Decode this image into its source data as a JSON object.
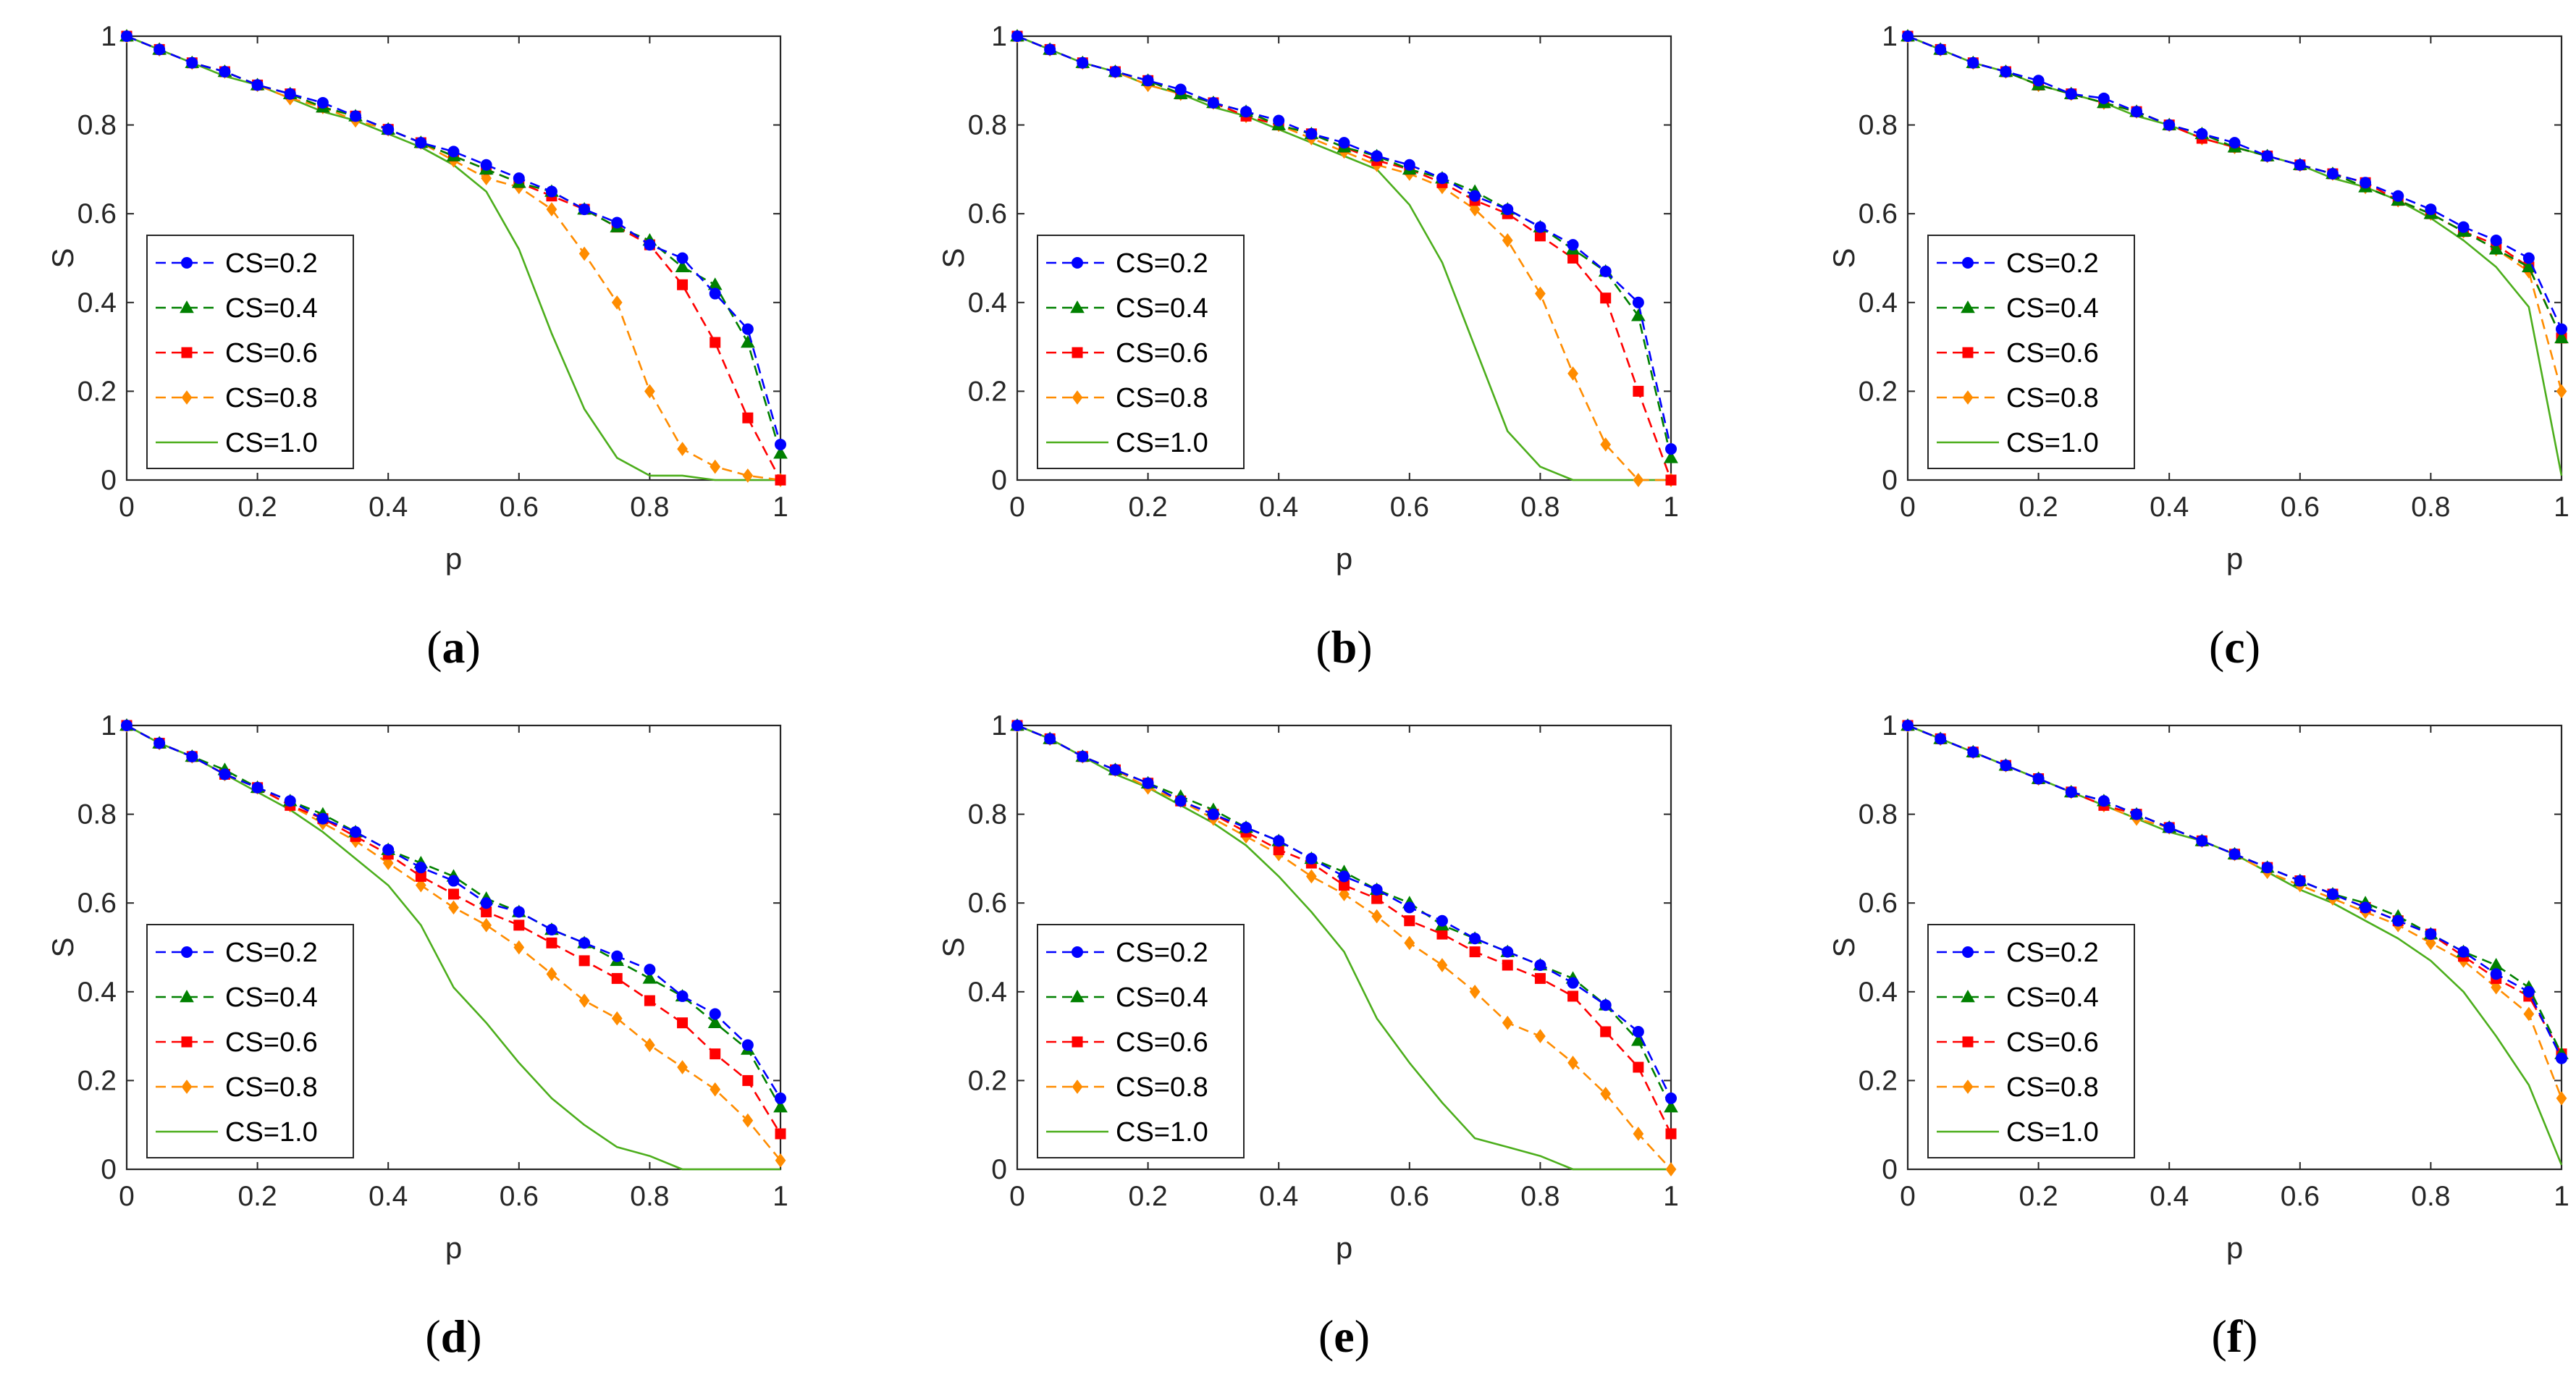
{
  "colors": {
    "cs02": "#0000ff",
    "cs04": "#008000",
    "cs06": "#ff0000",
    "cs08": "#ff8c00",
    "cs10": "#4cae1c",
    "axis": "#262626"
  },
  "legend_labels": [
    "CS=0.2",
    "CS=0.4",
    "CS=0.6",
    "CS=0.8",
    "CS=1.0"
  ],
  "chart_data": [
    {
      "id": "a",
      "type": "line",
      "caption_letter": "a",
      "caption_open": "(",
      "caption_close": ")",
      "xlabel": "p",
      "ylabel": "S",
      "xlim": [
        0,
        1
      ],
      "ylim": [
        0,
        1
      ],
      "xticks": [
        "0",
        "0.2",
        "0.4",
        "0.6",
        "0.8",
        "1"
      ],
      "yticks": [
        "0",
        "0.2",
        "0.4",
        "0.6",
        "0.8",
        "1"
      ],
      "legend": "bottom-left",
      "x": [
        0,
        0.05,
        0.1,
        0.15,
        0.2,
        0.25,
        0.3,
        0.35,
        0.4,
        0.45,
        0.5,
        0.55,
        0.6,
        0.65,
        0.7,
        0.75,
        0.8,
        0.85,
        0.9,
        0.95,
        1.0
      ],
      "series": [
        {
          "name": "CS=0.2",
          "values": [
            1.0,
            0.97,
            0.94,
            0.92,
            0.89,
            0.87,
            0.85,
            0.82,
            0.79,
            0.76,
            0.74,
            0.71,
            0.68,
            0.65,
            0.61,
            0.58,
            0.53,
            0.5,
            0.42,
            0.34,
            0.08
          ]
        },
        {
          "name": "CS=0.4",
          "values": [
            1.0,
            0.97,
            0.94,
            0.92,
            0.89,
            0.87,
            0.84,
            0.82,
            0.79,
            0.76,
            0.73,
            0.7,
            0.67,
            0.65,
            0.61,
            0.57,
            0.54,
            0.48,
            0.44,
            0.31,
            0.06
          ]
        },
        {
          "name": "CS=0.6",
          "values": [
            1.0,
            0.97,
            0.94,
            0.92,
            0.89,
            0.87,
            0.84,
            0.82,
            0.79,
            0.76,
            0.73,
            0.7,
            0.67,
            0.64,
            0.61,
            0.57,
            0.53,
            0.44,
            0.31,
            0.14,
            0.0
          ]
        },
        {
          "name": "CS=0.8",
          "values": [
            1.0,
            0.97,
            0.94,
            0.92,
            0.89,
            0.86,
            0.84,
            0.81,
            0.79,
            0.76,
            0.72,
            0.68,
            0.66,
            0.61,
            0.51,
            0.4,
            0.2,
            0.07,
            0.03,
            0.01,
            0.0
          ]
        },
        {
          "name": "CS=1.0",
          "values": [
            1.0,
            0.97,
            0.94,
            0.91,
            0.89,
            0.86,
            0.83,
            0.81,
            0.78,
            0.75,
            0.71,
            0.65,
            0.52,
            0.33,
            0.16,
            0.05,
            0.01,
            0.01,
            0.0,
            0.0,
            0.0
          ]
        }
      ]
    },
    {
      "id": "b",
      "type": "line",
      "caption_letter": "b",
      "caption_open": "(",
      "caption_close": ")",
      "xlabel": "p",
      "ylabel": "S",
      "xlim": [
        0,
        1
      ],
      "ylim": [
        0,
        1
      ],
      "xticks": [
        "0",
        "0.2",
        "0.4",
        "0.6",
        "0.8",
        "1"
      ],
      "yticks": [
        "0",
        "0.2",
        "0.4",
        "0.6",
        "0.8",
        "1"
      ],
      "legend": "bottom-left",
      "x": [
        0,
        0.05,
        0.1,
        0.15,
        0.2,
        0.25,
        0.3,
        0.35,
        0.4,
        0.45,
        0.5,
        0.55,
        0.6,
        0.65,
        0.7,
        0.75,
        0.8,
        0.85,
        0.9,
        0.95,
        1.0
      ],
      "series": [
        {
          "name": "CS=0.2",
          "values": [
            1.0,
            0.97,
            0.94,
            0.92,
            0.9,
            0.88,
            0.85,
            0.83,
            0.81,
            0.78,
            0.76,
            0.73,
            0.71,
            0.68,
            0.64,
            0.61,
            0.57,
            0.53,
            0.47,
            0.4,
            0.07
          ]
        },
        {
          "name": "CS=0.4",
          "values": [
            1.0,
            0.97,
            0.94,
            0.92,
            0.9,
            0.87,
            0.85,
            0.83,
            0.8,
            0.78,
            0.75,
            0.73,
            0.7,
            0.68,
            0.65,
            0.61,
            0.57,
            0.52,
            0.47,
            0.37,
            0.05
          ]
        },
        {
          "name": "CS=0.6",
          "values": [
            1.0,
            0.97,
            0.94,
            0.92,
            0.9,
            0.87,
            0.85,
            0.82,
            0.8,
            0.78,
            0.75,
            0.72,
            0.7,
            0.67,
            0.63,
            0.6,
            0.55,
            0.5,
            0.41,
            0.2,
            0.0
          ]
        },
        {
          "name": "CS=0.8",
          "values": [
            1.0,
            0.97,
            0.94,
            0.92,
            0.89,
            0.87,
            0.85,
            0.82,
            0.8,
            0.77,
            0.74,
            0.71,
            0.69,
            0.66,
            0.61,
            0.54,
            0.42,
            0.24,
            0.08,
            0.0,
            0.0
          ]
        },
        {
          "name": "CS=1.0",
          "values": [
            1.0,
            0.97,
            0.94,
            0.92,
            0.89,
            0.87,
            0.84,
            0.82,
            0.79,
            0.76,
            0.73,
            0.7,
            0.62,
            0.49,
            0.3,
            0.11,
            0.03,
            0.0,
            0.0,
            0.0,
            0.0
          ]
        }
      ]
    },
    {
      "id": "c",
      "type": "line",
      "caption_letter": "c",
      "caption_open": "(",
      "caption_close": ")",
      "xlabel": "p",
      "ylabel": "S",
      "xlim": [
        0,
        1
      ],
      "ylim": [
        0,
        1
      ],
      "xticks": [
        "0",
        "0.2",
        "0.4",
        "0.6",
        "0.8",
        "1"
      ],
      "yticks": [
        "0",
        "0.2",
        "0.4",
        "0.6",
        "0.8",
        "1"
      ],
      "legend": "bottom-left",
      "x": [
        0,
        0.05,
        0.1,
        0.15,
        0.2,
        0.25,
        0.3,
        0.35,
        0.4,
        0.45,
        0.5,
        0.55,
        0.6,
        0.65,
        0.7,
        0.75,
        0.8,
        0.85,
        0.9,
        0.95,
        1.0
      ],
      "series": [
        {
          "name": "CS=0.2",
          "values": [
            1.0,
            0.97,
            0.94,
            0.92,
            0.9,
            0.87,
            0.86,
            0.83,
            0.8,
            0.78,
            0.76,
            0.73,
            0.71,
            0.69,
            0.67,
            0.64,
            0.61,
            0.57,
            0.54,
            0.5,
            0.34
          ]
        },
        {
          "name": "CS=0.4",
          "values": [
            1.0,
            0.97,
            0.94,
            0.92,
            0.89,
            0.87,
            0.85,
            0.83,
            0.8,
            0.78,
            0.75,
            0.73,
            0.71,
            0.69,
            0.66,
            0.63,
            0.6,
            0.56,
            0.52,
            0.48,
            0.32
          ]
        },
        {
          "name": "CS=0.6",
          "values": [
            1.0,
            0.97,
            0.94,
            0.92,
            0.89,
            0.87,
            0.85,
            0.83,
            0.8,
            0.77,
            0.75,
            0.73,
            0.71,
            0.69,
            0.67,
            0.63,
            0.6,
            0.56,
            0.53,
            0.48,
            0.32
          ]
        },
        {
          "name": "CS=0.8",
          "values": [
            1.0,
            0.97,
            0.94,
            0.92,
            0.89,
            0.87,
            0.85,
            0.83,
            0.8,
            0.77,
            0.75,
            0.73,
            0.71,
            0.69,
            0.66,
            0.63,
            0.6,
            0.56,
            0.52,
            0.47,
            0.2
          ]
        },
        {
          "name": "CS=1.0",
          "values": [
            1.0,
            0.97,
            0.94,
            0.92,
            0.89,
            0.87,
            0.85,
            0.82,
            0.8,
            0.77,
            0.75,
            0.73,
            0.71,
            0.68,
            0.66,
            0.63,
            0.59,
            0.54,
            0.48,
            0.39,
            0.01
          ]
        }
      ]
    },
    {
      "id": "d",
      "type": "line",
      "caption_letter": "d",
      "caption_open": "(",
      "caption_close": ")",
      "xlabel": "p",
      "ylabel": "S",
      "xlim": [
        0,
        1
      ],
      "ylim": [
        0,
        1
      ],
      "xticks": [
        "0",
        "0.2",
        "0.4",
        "0.6",
        "0.8",
        "1"
      ],
      "yticks": [
        "0",
        "0.2",
        "0.4",
        "0.6",
        "0.8",
        "1"
      ],
      "legend": "bottom-left",
      "x": [
        0,
        0.05,
        0.1,
        0.15,
        0.2,
        0.25,
        0.3,
        0.35,
        0.4,
        0.45,
        0.5,
        0.55,
        0.6,
        0.65,
        0.7,
        0.75,
        0.8,
        0.85,
        0.9,
        0.95,
        1.0
      ],
      "series": [
        {
          "name": "CS=0.2",
          "values": [
            1.0,
            0.96,
            0.93,
            0.89,
            0.86,
            0.83,
            0.79,
            0.76,
            0.72,
            0.68,
            0.65,
            0.6,
            0.58,
            0.54,
            0.51,
            0.48,
            0.45,
            0.39,
            0.35,
            0.28,
            0.16
          ]
        },
        {
          "name": "CS=0.4",
          "values": [
            1.0,
            0.96,
            0.93,
            0.9,
            0.86,
            0.83,
            0.8,
            0.76,
            0.72,
            0.69,
            0.66,
            0.61,
            0.58,
            0.54,
            0.51,
            0.47,
            0.43,
            0.39,
            0.33,
            0.27,
            0.14
          ]
        },
        {
          "name": "CS=0.6",
          "values": [
            1.0,
            0.96,
            0.93,
            0.89,
            0.86,
            0.82,
            0.79,
            0.75,
            0.71,
            0.66,
            0.62,
            0.58,
            0.55,
            0.51,
            0.47,
            0.43,
            0.38,
            0.33,
            0.26,
            0.2,
            0.08
          ]
        },
        {
          "name": "CS=0.8",
          "values": [
            1.0,
            0.96,
            0.93,
            0.89,
            0.86,
            0.82,
            0.78,
            0.74,
            0.69,
            0.64,
            0.59,
            0.55,
            0.5,
            0.44,
            0.38,
            0.34,
            0.28,
            0.23,
            0.18,
            0.11,
            0.02
          ]
        },
        {
          "name": "CS=1.0",
          "values": [
            1.0,
            0.96,
            0.93,
            0.89,
            0.85,
            0.81,
            0.76,
            0.7,
            0.64,
            0.55,
            0.41,
            0.33,
            0.24,
            0.16,
            0.1,
            0.05,
            0.03,
            0.0,
            0.0,
            0.0,
            0.0
          ]
        }
      ]
    },
    {
      "id": "e",
      "type": "line",
      "caption_letter": "e",
      "caption_open": "(",
      "caption_close": ")",
      "xlabel": "p",
      "ylabel": "S",
      "xlim": [
        0,
        1
      ],
      "ylim": [
        0,
        1
      ],
      "xticks": [
        "0",
        "0.2",
        "0.4",
        "0.6",
        "0.8",
        "1"
      ],
      "yticks": [
        "0",
        "0.2",
        "0.4",
        "0.6",
        "0.8",
        "1"
      ],
      "legend": "bottom-left",
      "x": [
        0,
        0.05,
        0.1,
        0.15,
        0.2,
        0.25,
        0.3,
        0.35,
        0.4,
        0.45,
        0.5,
        0.55,
        0.6,
        0.65,
        0.7,
        0.75,
        0.8,
        0.85,
        0.9,
        0.95,
        1.0
      ],
      "series": [
        {
          "name": "CS=0.2",
          "values": [
            1.0,
            0.97,
            0.93,
            0.9,
            0.87,
            0.83,
            0.8,
            0.77,
            0.74,
            0.7,
            0.66,
            0.63,
            0.59,
            0.56,
            0.52,
            0.49,
            0.46,
            0.42,
            0.37,
            0.31,
            0.16
          ]
        },
        {
          "name": "CS=0.4",
          "values": [
            1.0,
            0.97,
            0.93,
            0.9,
            0.87,
            0.84,
            0.81,
            0.77,
            0.74,
            0.7,
            0.67,
            0.63,
            0.6,
            0.55,
            0.52,
            0.49,
            0.46,
            0.43,
            0.37,
            0.29,
            0.14
          ]
        },
        {
          "name": "CS=0.6",
          "values": [
            1.0,
            0.97,
            0.93,
            0.9,
            0.87,
            0.83,
            0.8,
            0.76,
            0.72,
            0.69,
            0.64,
            0.61,
            0.56,
            0.53,
            0.49,
            0.46,
            0.43,
            0.39,
            0.31,
            0.23,
            0.08
          ]
        },
        {
          "name": "CS=0.8",
          "values": [
            1.0,
            0.97,
            0.93,
            0.9,
            0.86,
            0.83,
            0.79,
            0.75,
            0.71,
            0.66,
            0.62,
            0.57,
            0.51,
            0.46,
            0.4,
            0.33,
            0.3,
            0.24,
            0.17,
            0.08,
            0.0
          ]
        },
        {
          "name": "CS=1.0",
          "values": [
            1.0,
            0.97,
            0.93,
            0.89,
            0.86,
            0.82,
            0.78,
            0.73,
            0.66,
            0.58,
            0.49,
            0.34,
            0.24,
            0.15,
            0.07,
            0.05,
            0.03,
            0.0,
            0.0,
            0.0,
            0.0
          ]
        }
      ]
    },
    {
      "id": "f",
      "type": "line",
      "caption_letter": "f",
      "caption_open": "(",
      "caption_close": ")",
      "xlabel": "p",
      "ylabel": "S",
      "xlim": [
        0,
        1
      ],
      "ylim": [
        0,
        1
      ],
      "xticks": [
        "0",
        "0.2",
        "0.4",
        "0.6",
        "0.8",
        "1"
      ],
      "yticks": [
        "0",
        "0.2",
        "0.4",
        "0.6",
        "0.8",
        "1"
      ],
      "legend": "bottom-left",
      "x": [
        0,
        0.05,
        0.1,
        0.15,
        0.2,
        0.25,
        0.3,
        0.35,
        0.4,
        0.45,
        0.5,
        0.55,
        0.6,
        0.65,
        0.7,
        0.75,
        0.8,
        0.85,
        0.9,
        0.95,
        1.0
      ],
      "series": [
        {
          "name": "CS=0.2",
          "values": [
            1.0,
            0.97,
            0.94,
            0.91,
            0.88,
            0.85,
            0.83,
            0.8,
            0.77,
            0.74,
            0.71,
            0.68,
            0.65,
            0.62,
            0.59,
            0.56,
            0.53,
            0.49,
            0.44,
            0.4,
            0.25
          ]
        },
        {
          "name": "CS=0.4",
          "values": [
            1.0,
            0.97,
            0.94,
            0.91,
            0.88,
            0.85,
            0.83,
            0.8,
            0.77,
            0.74,
            0.71,
            0.68,
            0.65,
            0.62,
            0.6,
            0.57,
            0.53,
            0.49,
            0.46,
            0.41,
            0.26
          ]
        },
        {
          "name": "CS=0.6",
          "values": [
            1.0,
            0.97,
            0.94,
            0.91,
            0.88,
            0.85,
            0.82,
            0.8,
            0.77,
            0.74,
            0.71,
            0.68,
            0.65,
            0.62,
            0.59,
            0.56,
            0.53,
            0.48,
            0.43,
            0.39,
            0.26
          ]
        },
        {
          "name": "CS=0.8",
          "values": [
            1.0,
            0.97,
            0.94,
            0.91,
            0.88,
            0.85,
            0.82,
            0.79,
            0.77,
            0.74,
            0.71,
            0.67,
            0.64,
            0.61,
            0.58,
            0.55,
            0.51,
            0.47,
            0.41,
            0.35,
            0.16
          ]
        },
        {
          "name": "CS=1.0",
          "values": [
            1.0,
            0.97,
            0.94,
            0.91,
            0.88,
            0.85,
            0.82,
            0.79,
            0.76,
            0.74,
            0.71,
            0.67,
            0.63,
            0.6,
            0.56,
            0.52,
            0.47,
            0.4,
            0.3,
            0.19,
            0.01
          ]
        }
      ]
    }
  ]
}
